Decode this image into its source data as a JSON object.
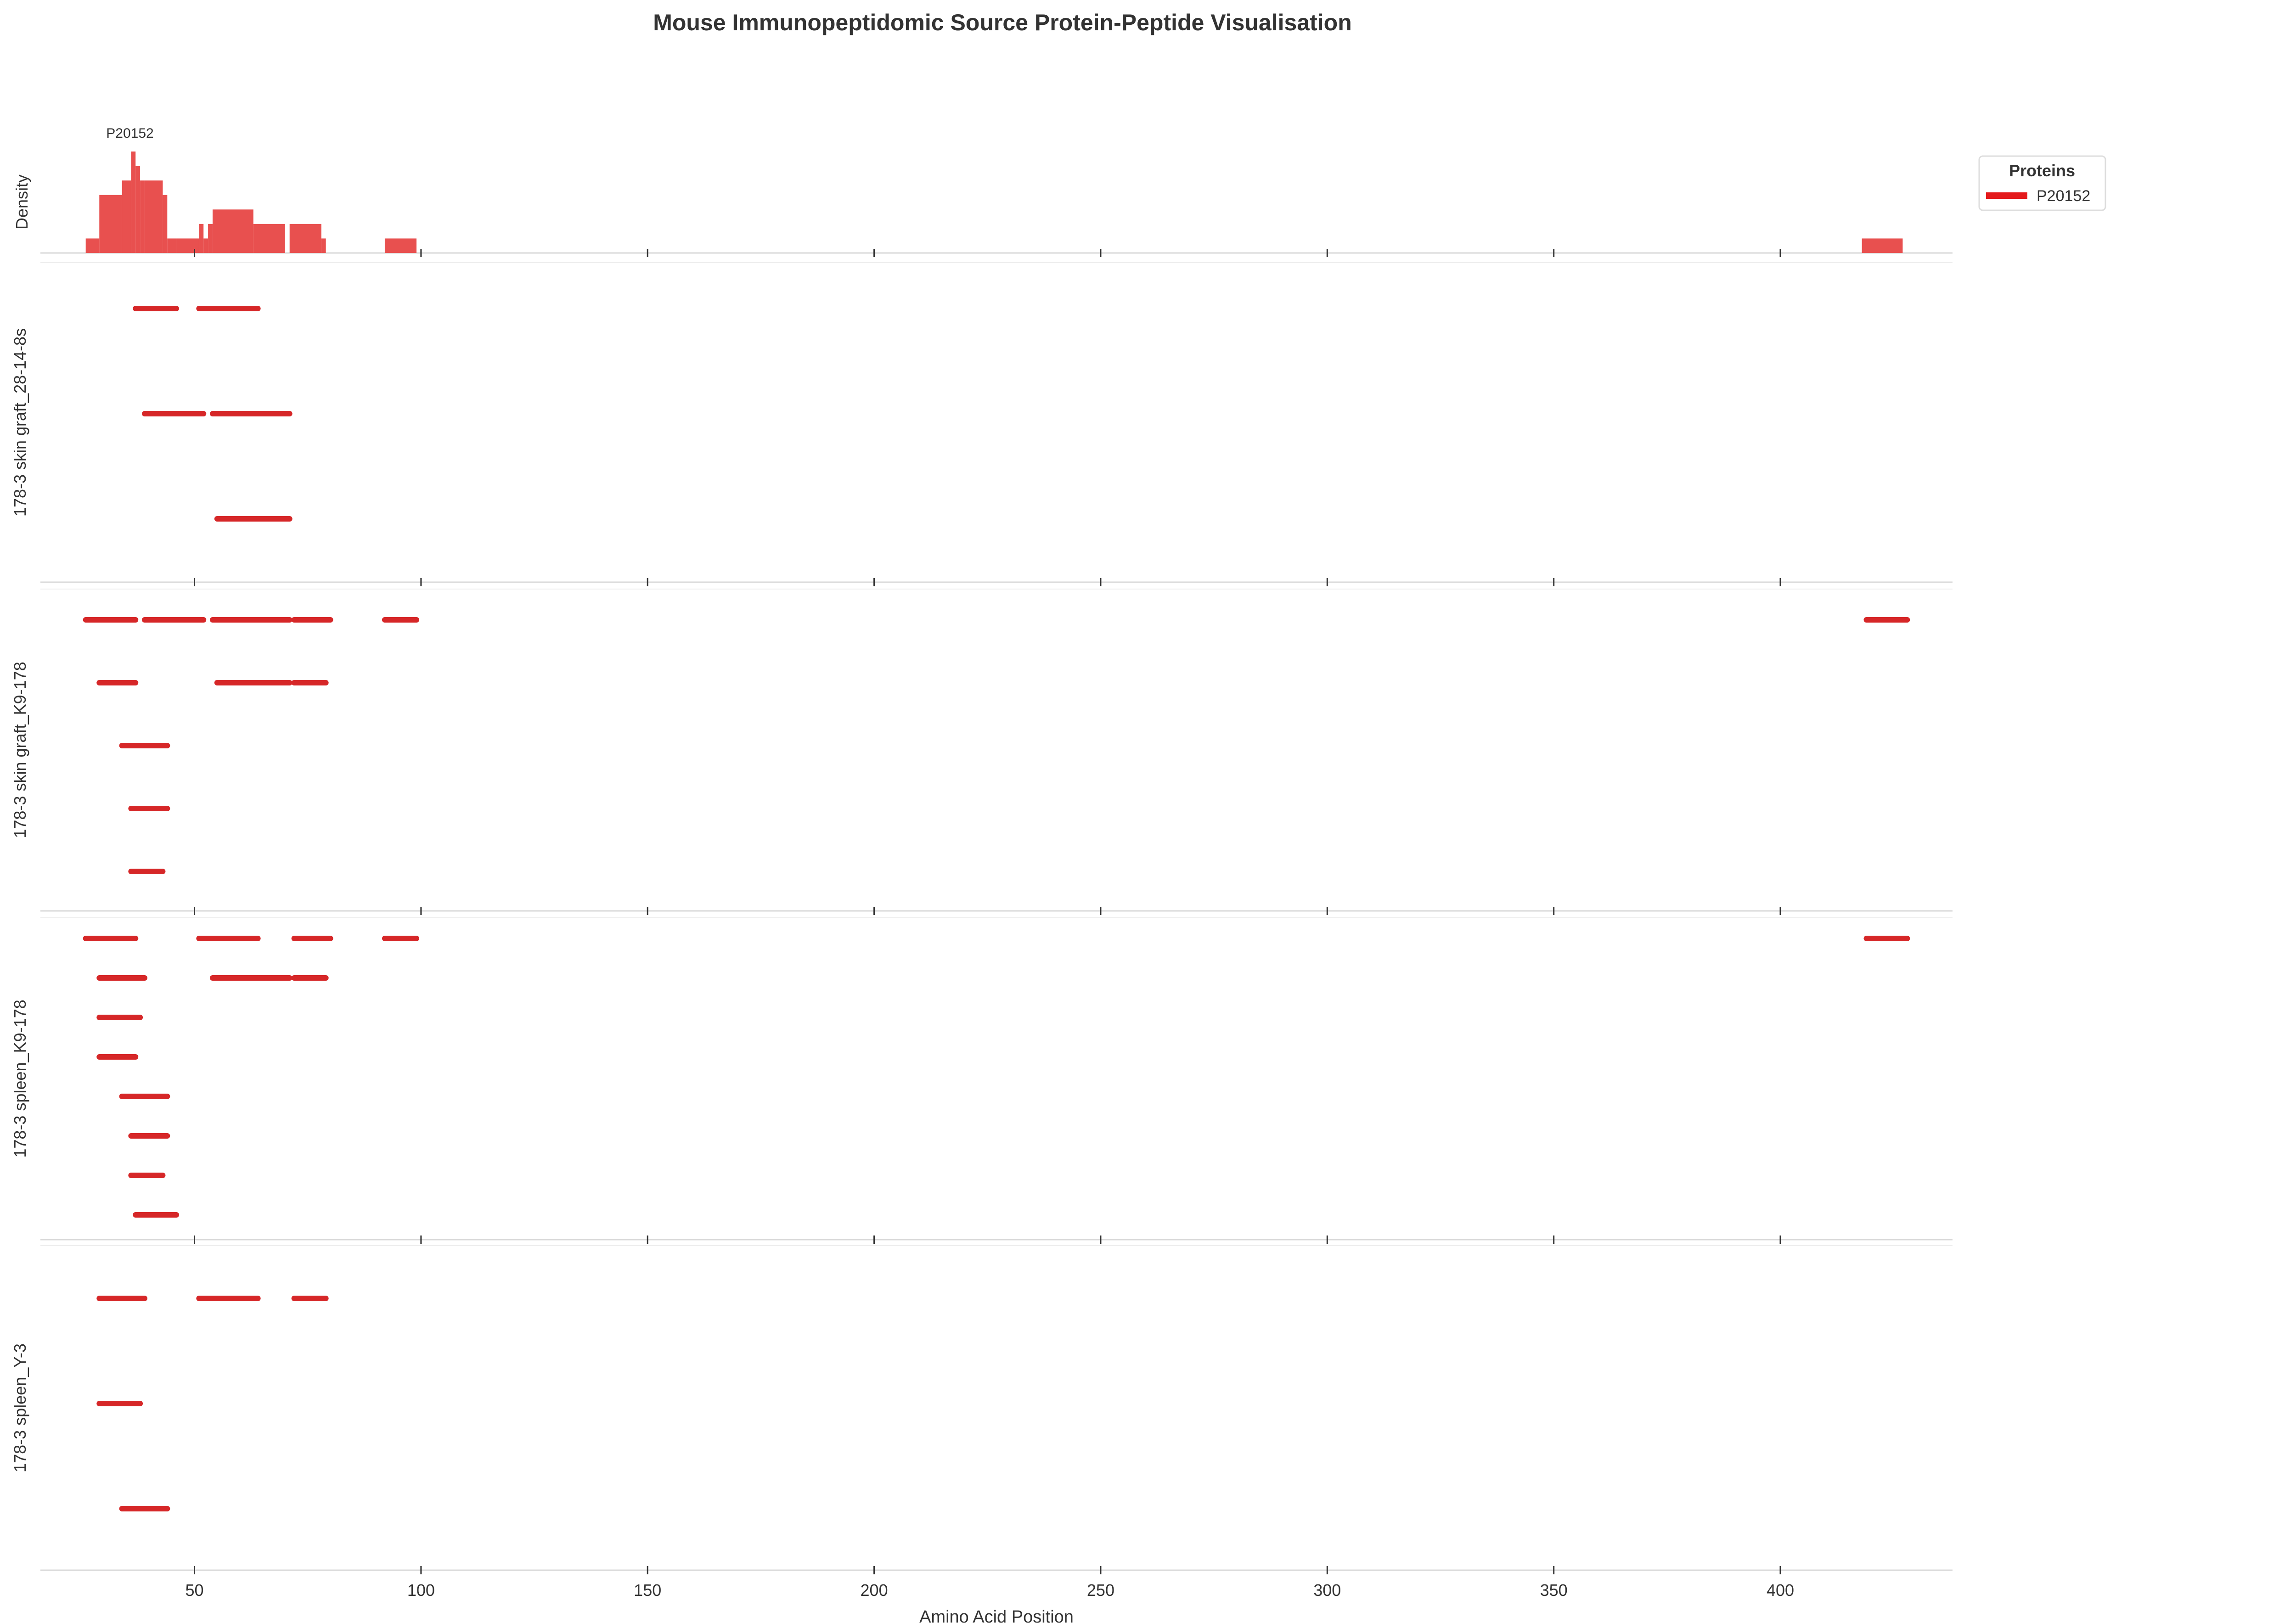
{
  "title": "Mouse Immunopeptidomic Source Protein-Peptide Visualisation",
  "xlabel": "Amino Acid Position",
  "density_label": "Density",
  "legend": {
    "title": "Proteins",
    "items": [
      {
        "name": "P20152",
        "color": "#e41a1c"
      }
    ]
  },
  "colors": {
    "peptide": "#d62728",
    "density": "#e8504f",
    "axis": "#d9d9d9",
    "text": "#333333"
  },
  "chart_data": {
    "type": "bar",
    "xlim": [
      16,
      438
    ],
    "xticks": [
      50,
      100,
      150,
      200,
      250,
      300,
      350,
      400
    ],
    "xtick_labels": [
      "50",
      "100",
      "150",
      "200",
      "250",
      "300",
      "350",
      "400"
    ],
    "density": {
      "ylabel": "Density",
      "label": "P20152",
      "bars": [
        {
          "x0": 26,
          "x1": 29,
          "h": 1
        },
        {
          "x0": 29,
          "x1": 34,
          "h": 4
        },
        {
          "x0": 34,
          "x1": 36,
          "h": 5
        },
        {
          "x0": 36,
          "x1": 37,
          "h": 7
        },
        {
          "x0": 37,
          "x1": 38,
          "h": 6
        },
        {
          "x0": 38,
          "x1": 39,
          "h": 5
        },
        {
          "x0": 39,
          "x1": 43,
          "h": 5
        },
        {
          "x0": 43,
          "x1": 44,
          "h": 4
        },
        {
          "x0": 44,
          "x1": 46,
          "h": 1
        },
        {
          "x0": 46,
          "x1": 51,
          "h": 1
        },
        {
          "x0": 51,
          "x1": 52,
          "h": 2
        },
        {
          "x0": 52,
          "x1": 53,
          "h": 1
        },
        {
          "x0": 53,
          "x1": 54,
          "h": 2
        },
        {
          "x0": 54,
          "x1": 63,
          "h": 3
        },
        {
          "x0": 63,
          "x1": 70,
          "h": 2
        },
        {
          "x0": 71,
          "x1": 78,
          "h": 2
        },
        {
          "x0": 78,
          "x1": 79,
          "h": 1
        },
        {
          "x0": 92,
          "x1": 99,
          "h": 1
        },
        {
          "x0": 418,
          "x1": 427,
          "h": 1
        }
      ],
      "ymax": 7
    },
    "panels": [
      {
        "label": "178-3 skin graft_28-14-8s",
        "rows": 3,
        "peptides": [
          {
            "row": 0,
            "start": 37,
            "end": 46
          },
          {
            "row": 0,
            "start": 51,
            "end": 64
          },
          {
            "row": 1,
            "start": 39,
            "end": 52
          },
          {
            "row": 1,
            "start": 54,
            "end": 71
          },
          {
            "row": 2,
            "start": 55,
            "end": 71
          }
        ]
      },
      {
        "label": "178-3 skin graft_K9-178",
        "rows": 5,
        "peptides": [
          {
            "row": 0,
            "start": 26,
            "end": 37
          },
          {
            "row": 0,
            "start": 39,
            "end": 52
          },
          {
            "row": 0,
            "start": 54,
            "end": 71
          },
          {
            "row": 0,
            "start": 72,
            "end": 80
          },
          {
            "row": 0,
            "start": 92,
            "end": 99
          },
          {
            "row": 0,
            "start": 419,
            "end": 428
          },
          {
            "row": 1,
            "start": 29,
            "end": 37
          },
          {
            "row": 1,
            "start": 55,
            "end": 71
          },
          {
            "row": 1,
            "start": 72,
            "end": 79
          },
          {
            "row": 2,
            "start": 34,
            "end": 44
          },
          {
            "row": 3,
            "start": 36,
            "end": 44
          },
          {
            "row": 4,
            "start": 36,
            "end": 43
          }
        ]
      },
      {
        "label": "178-3 spleen_K9-178",
        "rows": 8,
        "peptides": [
          {
            "row": 0,
            "start": 26,
            "end": 37
          },
          {
            "row": 0,
            "start": 51,
            "end": 64
          },
          {
            "row": 0,
            "start": 72,
            "end": 80
          },
          {
            "row": 0,
            "start": 92,
            "end": 99
          },
          {
            "row": 0,
            "start": 419,
            "end": 428
          },
          {
            "row": 1,
            "start": 29,
            "end": 39
          },
          {
            "row": 1,
            "start": 54,
            "end": 71
          },
          {
            "row": 1,
            "start": 72,
            "end": 79
          },
          {
            "row": 2,
            "start": 29,
            "end": 38
          },
          {
            "row": 3,
            "start": 29,
            "end": 37
          },
          {
            "row": 4,
            "start": 34,
            "end": 44
          },
          {
            "row": 5,
            "start": 36,
            "end": 44
          },
          {
            "row": 6,
            "start": 36,
            "end": 43
          },
          {
            "row": 7,
            "start": 37,
            "end": 46
          }
        ]
      },
      {
        "label": "178-3 spleen_Y-3",
        "rows": 3,
        "peptides": [
          {
            "row": 0,
            "start": 29,
            "end": 39
          },
          {
            "row": 0,
            "start": 51,
            "end": 64
          },
          {
            "row": 0,
            "start": 72,
            "end": 79
          },
          {
            "row": 1,
            "start": 29,
            "end": 38
          },
          {
            "row": 2,
            "start": 34,
            "end": 44
          }
        ]
      }
    ]
  }
}
